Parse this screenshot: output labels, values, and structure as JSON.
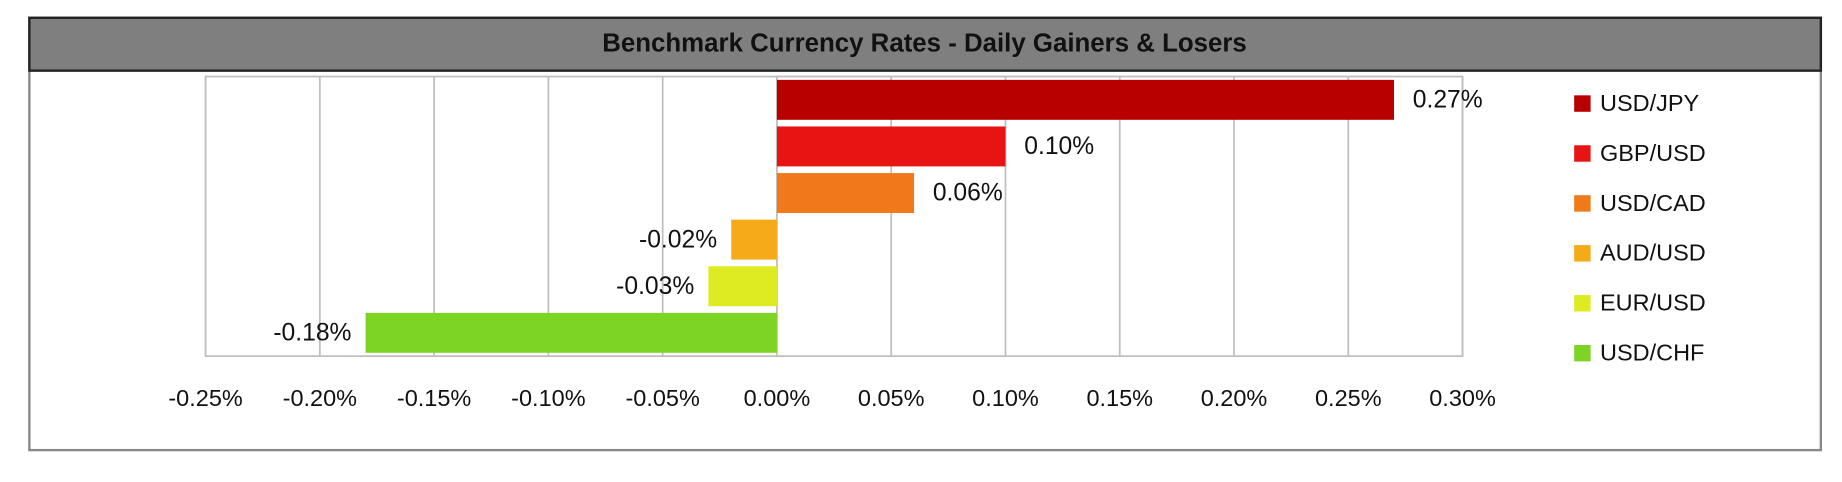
{
  "chart_data": {
    "type": "bar",
    "orientation": "horizontal",
    "title": "Benchmark Currency Rates - Daily Gainers & Losers",
    "categories": [
      "USD/JPY",
      "GBP/USD",
      "USD/CAD",
      "AUD/USD",
      "EUR/USD",
      "USD/CHF"
    ],
    "values": [
      0.27,
      0.1,
      0.06,
      -0.02,
      -0.03,
      -0.18
    ],
    "value_labels": [
      "0.27%",
      "0.10%",
      "0.06%",
      "-0.02%",
      "-0.03%",
      "-0.18%"
    ],
    "colors": [
      "#b80000",
      "#e81414",
      "#f07a1a",
      "#f5aa18",
      "#dfeb22",
      "#7ed424"
    ],
    "xlim": [
      -0.25,
      0.3
    ],
    "xticks": [
      {
        "value": -0.25,
        "label": "-0.25%"
      },
      {
        "value": -0.2,
        "label": "-0.20%"
      },
      {
        "value": -0.15,
        "label": "-0.15%"
      },
      {
        "value": -0.1,
        "label": "-0.10%"
      },
      {
        "value": -0.05,
        "label": "-0.05%"
      },
      {
        "value": 0,
        "label": "0.00%"
      },
      {
        "value": 0.05,
        "label": "0.05%"
      },
      {
        "value": 0.1,
        "label": "0.10%"
      },
      {
        "value": 0.15,
        "label": "0.15%"
      },
      {
        "value": 0.2,
        "label": "0.20%"
      },
      {
        "value": 0.25,
        "label": "0.25%"
      },
      {
        "value": 0.3,
        "label": "0.30%"
      }
    ],
    "grid": true,
    "legend": "right"
  }
}
